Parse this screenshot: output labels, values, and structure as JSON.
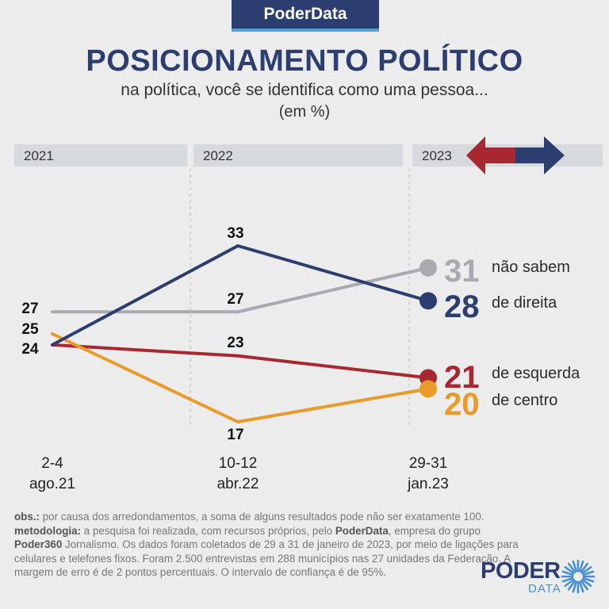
{
  "brand": "PoderData",
  "header": {
    "title": "POSICIONAMENTO POLÍTICO",
    "subtitle": "na política, você se identifica como uma pessoa...",
    "unit": "(em %)"
  },
  "colors": {
    "nao_sabem": "#a7abb0",
    "direita": "#2c3e70",
    "esquerda": "#a82832",
    "centro": "#e99a28",
    "band": "#d7dadd"
  },
  "chart_data": {
    "type": "line",
    "years": [
      "2021",
      "2022",
      "2023"
    ],
    "x": [
      "2-4 ago.21",
      "10-12 abr.22",
      "29-31 jan.23"
    ],
    "x_lines": [
      [
        "2-4",
        "ago.21"
      ],
      [
        "10-12",
        "abr.22"
      ],
      [
        "29-31",
        "jan.23"
      ]
    ],
    "ylim": [
      15,
      35
    ],
    "grid": false,
    "legend": "right",
    "series": [
      {
        "key": "nao_sabem",
        "name": "não sabem",
        "values": [
          27,
          27,
          31
        ]
      },
      {
        "key": "direita",
        "name": "de direita",
        "values": [
          24,
          33,
          28
        ]
      },
      {
        "key": "esquerda",
        "name": "de esquerda",
        "values": [
          24,
          23,
          21
        ]
      },
      {
        "key": "centro",
        "name": "de centro",
        "values": [
          25,
          17,
          20
        ]
      }
    ]
  },
  "notes": {
    "obs_label": "obs.:",
    "obs_text": " por causa dos arredondamentos, a soma de alguns resultados pode não ser exatamente 100.",
    "met_label": "metodologia:",
    "met_text_1": " a pesquisa foi realizada, com recursos próprios, pelo ",
    "met_brand": "PoderData",
    "met_text_2": ", empresa do grupo ",
    "met_group": "Poder360",
    "met_text_3": " Jornalismo. Os dados foram coletados de 29 a 31 de janeiro de 2023, por meio de ligações para celulares e telefones fixos. Foram 2.500 entrevistas em 288 municípios nas 27 unidades da Federação. A margem de erro é de 2 pontos percentuais. O intervalo de confiança é de 95%."
  },
  "logo": {
    "word": "PODER",
    "sub": "DATA"
  }
}
